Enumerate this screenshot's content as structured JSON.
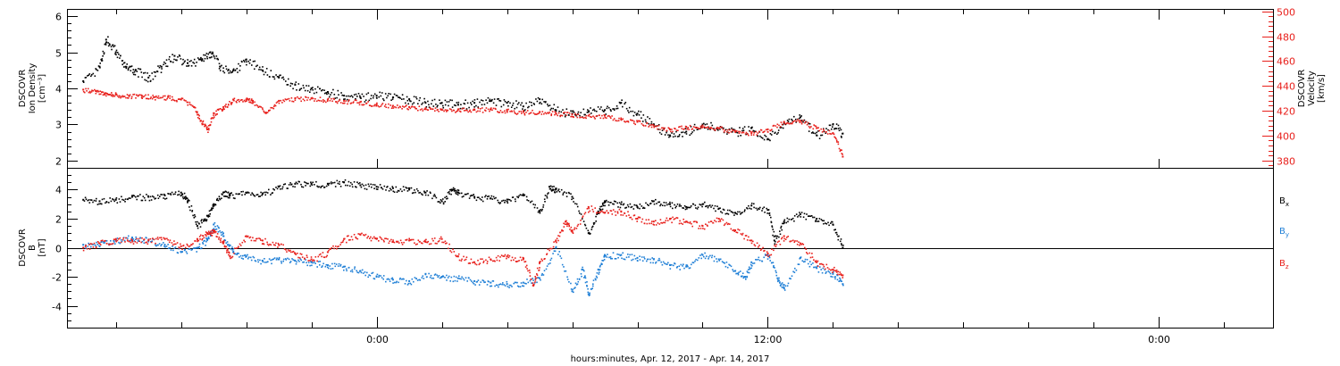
{
  "chart_data": [
    {
      "type": "scatter",
      "panel": "plasma",
      "ylabel_lines": [
        "DSCOVR",
        "Ion Density",
        "[cm⁻³]"
      ],
      "ylim": [
        1.8,
        6.2
      ],
      "yticks": [
        2,
        3,
        4,
        5,
        6
      ],
      "yticklabels": [
        "2",
        "3",
        "4",
        "5",
        "6"
      ],
      "y2label_lines": [
        "DSCOVR",
        "Velocity",
        "[km/s]"
      ],
      "y2lim": [
        374,
        502
      ],
      "y2ticks": [
        380,
        400,
        420,
        440,
        460,
        480,
        500
      ],
      "y2ticklabels": [
        "380",
        "400",
        "420",
        "440",
        "460",
        "480",
        "500"
      ],
      "y2_color": "#e8201c",
      "x_unit": "hours since Apr. 12, 2017 0:00",
      "series": [
        {
          "color": "#000000",
          "axis": "left",
          "x": [
            -9.0,
            -8.5,
            -8.3,
            -8.0,
            -7.7,
            -7.4,
            -7.0,
            -6.6,
            -6.2,
            -5.8,
            -5.4,
            -5.1,
            -4.8,
            -4.4,
            -4.0,
            -3.5,
            -3.0,
            -2.5,
            -2.0,
            -1.5,
            -1.0,
            -0.5,
            0.0,
            0.5,
            1.0,
            1.5,
            2.0,
            2.5,
            3.0,
            3.5,
            4.0,
            4.5,
            5.0,
            5.5,
            6.0,
            6.5,
            7.0,
            7.5,
            8.0,
            8.5,
            9.0,
            9.5,
            10.0,
            10.5,
            11.0,
            11.5,
            12.0,
            12.5,
            13.0,
            13.5,
            14.0,
            14.3
          ],
          "y": [
            4.2,
            4.6,
            5.35,
            5.0,
            4.6,
            4.5,
            4.3,
            4.6,
            4.9,
            4.7,
            4.8,
            5.0,
            4.6,
            4.5,
            4.8,
            4.5,
            4.3,
            4.1,
            4.0,
            3.9,
            3.8,
            3.75,
            3.8,
            3.75,
            3.7,
            3.6,
            3.6,
            3.55,
            3.6,
            3.65,
            3.6,
            3.5,
            3.7,
            3.4,
            3.3,
            3.35,
            3.4,
            3.6,
            3.3,
            3.0,
            2.7,
            2.8,
            3.0,
            2.9,
            2.8,
            2.9,
            2.6,
            3.05,
            3.2,
            2.7,
            3.0,
            2.75
          ]
        },
        {
          "color": "#e8201c",
          "axis": "right",
          "x": [
            -9.0,
            -8.6,
            -8.3,
            -8.0,
            -7.6,
            -7.2,
            -6.8,
            -6.4,
            -6.0,
            -5.6,
            -5.4,
            -5.2,
            -5.0,
            -4.7,
            -4.4,
            -4.0,
            -3.8,
            -3.4,
            -3.0,
            -2.5,
            -2.0,
            -1.5,
            -1.0,
            -0.5,
            0.0,
            0.5,
            1.0,
            1.5,
            2.0,
            2.5,
            3.0,
            3.5,
            4.0,
            4.5,
            5.0,
            5.5,
            6.0,
            6.5,
            7.0,
            7.5,
            8.0,
            8.5,
            9.0,
            9.5,
            10.0,
            10.5,
            11.0,
            11.5,
            12.0,
            12.5,
            13.0,
            13.5,
            14.0,
            14.3
          ],
          "y": [
            437,
            436,
            434,
            433,
            432,
            432,
            431,
            431,
            429,
            423,
            412,
            405,
            418,
            423,
            429,
            429,
            428,
            418,
            428,
            430,
            430,
            429,
            428,
            427,
            425,
            424,
            423,
            422,
            421,
            421,
            421,
            421,
            420,
            419,
            419,
            418,
            417,
            416,
            416,
            413,
            411,
            408,
            405,
            407,
            408,
            406,
            403,
            402,
            405,
            411,
            412,
            406,
            402,
            383
          ]
        }
      ]
    },
    {
      "type": "scatter",
      "panel": "magnetic-field",
      "ylabel_lines": [
        "DSCOVR",
        "B",
        "[nT]"
      ],
      "ylim": [
        -5.5,
        5.5
      ],
      "yticks": [
        -4,
        -2,
        0,
        2,
        4
      ],
      "yticklabels": [
        "-4",
        "-2",
        "0",
        "2",
        "4"
      ],
      "zero_line": true,
      "xlabel": "hours:minutes, Apr. 12, 2017 - Apr. 14, 2017",
      "xlim": [
        -9.5,
        27.5
      ],
      "xticks": [
        0,
        12,
        24
      ],
      "xticklabels": [
        "0:00",
        "12:00",
        "0:00"
      ],
      "x_unit": "hours since Apr. 12, 2017 0:00",
      "series": [
        {
          "name": "Bx",
          "color": "#000000",
          "x": [
            -9.0,
            -8.5,
            -8.0,
            -7.5,
            -7.0,
            -6.5,
            -6.0,
            -5.8,
            -5.5,
            -5.2,
            -5.0,
            -4.7,
            -4.5,
            -4.0,
            -3.5,
            -3.0,
            -2.5,
            -2.0,
            -1.5,
            -1.0,
            -0.5,
            0.0,
            0.5,
            1.0,
            1.5,
            2.0,
            2.3,
            2.5,
            3.0,
            3.5,
            4.0,
            4.5,
            5.0,
            5.3,
            5.5,
            6.0,
            6.5,
            6.8,
            7.0,
            7.5,
            8.0,
            8.5,
            9.0,
            9.5,
            10.0,
            10.5,
            11.0,
            11.5,
            12.0,
            12.2,
            12.5,
            13.0,
            13.5,
            14.0,
            14.3
          ],
          "y": [
            3.3,
            3.2,
            3.3,
            3.5,
            3.5,
            3.6,
            3.8,
            3.2,
            1.5,
            2.2,
            3.0,
            3.8,
            3.6,
            3.8,
            3.7,
            4.2,
            4.4,
            4.4,
            4.4,
            4.5,
            4.3,
            4.2,
            4.1,
            4.0,
            3.8,
            3.2,
            4.0,
            3.8,
            3.5,
            3.4,
            3.2,
            3.6,
            2.5,
            4.2,
            4.0,
            3.5,
            1.0,
            2.5,
            3.2,
            3.0,
            2.8,
            3.2,
            3.0,
            2.8,
            3.0,
            2.7,
            2.4,
            2.9,
            2.6,
            0.5,
            1.8,
            2.3,
            2.0,
            1.6,
            0.0
          ]
        },
        {
          "name": "By",
          "color": "#1f7fd6",
          "x": [
            -9.0,
            -8.5,
            -8.0,
            -7.5,
            -7.0,
            -6.5,
            -6.0,
            -5.5,
            -5.2,
            -5.0,
            -4.7,
            -4.4,
            -4.0,
            -3.5,
            -3.0,
            -2.5,
            -2.0,
            -1.5,
            -1.0,
            -0.5,
            0.0,
            0.5,
            1.0,
            1.5,
            2.0,
            2.5,
            3.0,
            3.5,
            4.0,
            4.5,
            5.0,
            5.5,
            6.0,
            6.3,
            6.5,
            6.8,
            7.0,
            7.5,
            8.0,
            8.5,
            9.0,
            9.5,
            10.0,
            10.5,
            11.0,
            11.3,
            11.5,
            12.0,
            12.3,
            12.5,
            13.0,
            13.5,
            14.0,
            14.3
          ],
          "y": [
            0.2,
            0.3,
            0.5,
            0.7,
            0.5,
            0.2,
            -0.3,
            0.0,
            0.6,
            1.6,
            0.8,
            -0.3,
            -0.6,
            -0.9,
            -0.8,
            -0.9,
            -1.0,
            -1.2,
            -1.3,
            -1.6,
            -2.0,
            -2.2,
            -2.3,
            -1.8,
            -2.0,
            -2.1,
            -2.3,
            -2.4,
            -2.5,
            -2.4,
            -2.1,
            0.0,
            -3.0,
            -1.5,
            -3.2,
            -1.5,
            -0.5,
            -0.5,
            -0.7,
            -0.8,
            -1.2,
            -1.3,
            -0.5,
            -0.8,
            -1.6,
            -2.0,
            -1.0,
            -0.5,
            -2.1,
            -2.8,
            -0.7,
            -1.4,
            -1.8,
            -2.5
          ]
        },
        {
          "name": "Bz",
          "color": "#e8201c",
          "x": [
            -9.0,
            -8.5,
            -8.0,
            -7.5,
            -7.0,
            -6.5,
            -6.0,
            -5.5,
            -5.2,
            -5.0,
            -4.7,
            -4.5,
            -4.0,
            -3.5,
            -3.0,
            -2.5,
            -2.0,
            -1.5,
            -1.0,
            -0.5,
            0.0,
            0.5,
            1.0,
            1.5,
            2.0,
            2.5,
            3.0,
            3.5,
            4.0,
            4.5,
            4.8,
            5.0,
            5.5,
            5.8,
            6.0,
            6.5,
            7.0,
            7.5,
            8.0,
            8.5,
            9.0,
            9.5,
            10.0,
            10.5,
            11.0,
            11.5,
            12.0,
            12.5,
            13.0,
            13.5,
            14.0,
            14.3
          ],
          "y": [
            0.0,
            0.3,
            0.6,
            0.5,
            0.5,
            0.6,
            0.1,
            0.6,
            1.0,
            1.1,
            0.3,
            -0.6,
            0.8,
            0.5,
            0.2,
            -0.4,
            -0.8,
            -0.3,
            0.6,
            0.9,
            0.6,
            0.4,
            0.5,
            0.4,
            0.6,
            -0.6,
            -1.0,
            -0.8,
            -0.6,
            -0.8,
            -2.6,
            -1.0,
            0.5,
            1.8,
            1.2,
            2.8,
            2.4,
            2.5,
            2.0,
            1.8,
            2.0,
            1.8,
            1.5,
            2.0,
            1.2,
            0.5,
            -0.4,
            0.8,
            0.3,
            -1.0,
            -1.5,
            -1.9
          ]
        }
      ],
      "legend": [
        {
          "label": "B",
          "sub": "x",
          "color": "#000000"
        },
        {
          "label": "B",
          "sub": "y",
          "color": "#1f7fd6"
        },
        {
          "label": "B",
          "sub": "z",
          "color": "#e8201c"
        }
      ]
    }
  ]
}
